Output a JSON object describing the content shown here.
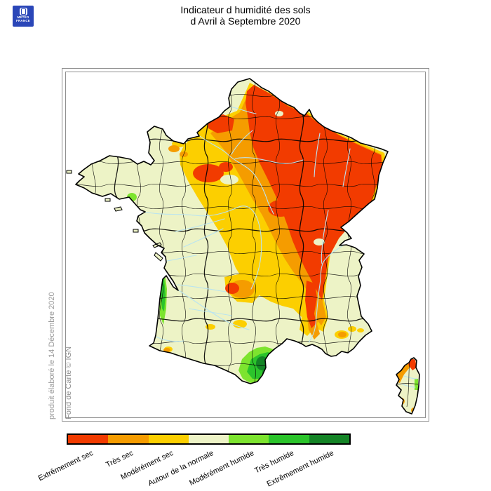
{
  "header": {
    "logo": {
      "line1": "METEO",
      "line2": "FRANCE",
      "bg_color": "#2a46b8"
    },
    "title_line1": "Indicateur d humidité des sols",
    "title_line2": "d Avril à Septembre 2020"
  },
  "map": {
    "credit_produced": "produit élaboré le 14 Décembre 2020",
    "credit_basemap": "Fond de Carte © IGN",
    "palette": {
      "extremely_dry": "#f23b00",
      "very_dry": "#f59c00",
      "moderately_dry": "#fccf00",
      "normal": "#edf3c6",
      "moderately_humid": "#7de42f",
      "very_humid": "#2bc42b",
      "extremely_humid": "#148426",
      "river": "#b9e4f0",
      "border": "#000000"
    }
  },
  "legend": {
    "items": [
      {
        "label": "Extrêmement sec",
        "color": "#f23b00"
      },
      {
        "label": "Très sec",
        "color": "#f59c00"
      },
      {
        "label": "Modérément sec",
        "color": "#fccf00"
      },
      {
        "label": "Autour de la normale",
        "color": "#edf3c6"
      },
      {
        "label": "Modérément humide",
        "color": "#7de42f"
      },
      {
        "label": "Très humide",
        "color": "#2bc42b"
      },
      {
        "label": "Extrêmement humide",
        "color": "#148426"
      }
    ]
  }
}
